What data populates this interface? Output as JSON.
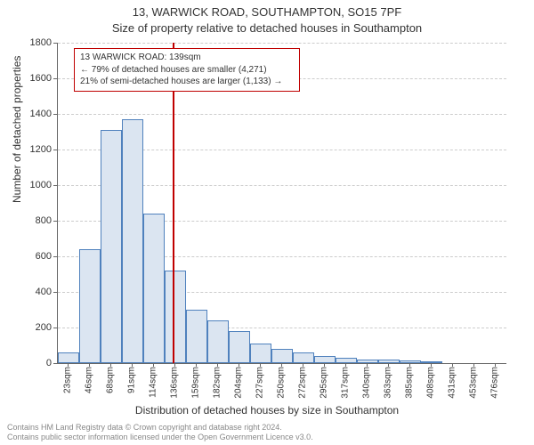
{
  "title_line1": "13, WARWICK ROAD, SOUTHAMPTON, SO15 7PF",
  "title_line2": "Size of property relative to detached houses in Southampton",
  "ylabel": "Number of detached properties",
  "xlabel": "Distribution of detached houses by size in Southampton",
  "footer_line1": "Contains HM Land Registry data © Crown copyright and database right 2024.",
  "footer_line2": "Contains public sector information licensed under the Open Government Licence v3.0.",
  "chart": {
    "type": "histogram",
    "background_color": "#ffffff",
    "grid_color": "#cccccc",
    "axis_color": "#666666",
    "bar_fill": "#dbe5f1",
    "bar_stroke": "#4f81bd",
    "marker_color": "#c00000",
    "ylim": [
      0,
      1800
    ],
    "ytick_step": 200,
    "yticks": [
      0,
      200,
      400,
      600,
      800,
      1000,
      1200,
      1400,
      1600,
      1800
    ],
    "xticks": [
      "23sqm",
      "46sqm",
      "68sqm",
      "91sqm",
      "114sqm",
      "136sqm",
      "159sqm",
      "182sqm",
      "204sqm",
      "227sqm",
      "250sqm",
      "272sqm",
      "295sqm",
      "317sqm",
      "340sqm",
      "363sqm",
      "385sqm",
      "408sqm",
      "431sqm",
      "453sqm",
      "476sqm"
    ],
    "values": [
      60,
      640,
      1310,
      1370,
      840,
      520,
      300,
      240,
      180,
      110,
      80,
      60,
      40,
      30,
      20,
      20,
      15,
      10,
      0,
      0,
      0
    ],
    "marker_x_value": 139,
    "marker_x_range": [
      23,
      476
    ],
    "callout": {
      "line1": "13 WARWICK ROAD: 139sqm",
      "line2": "← 79% of detached houses are smaller (4,271)",
      "line3": "21% of semi-detached houses are larger (1,133) →"
    },
    "title_fontsize": 13,
    "label_fontsize": 12,
    "tick_fontsize": 11,
    "xtick_fontsize": 10
  }
}
